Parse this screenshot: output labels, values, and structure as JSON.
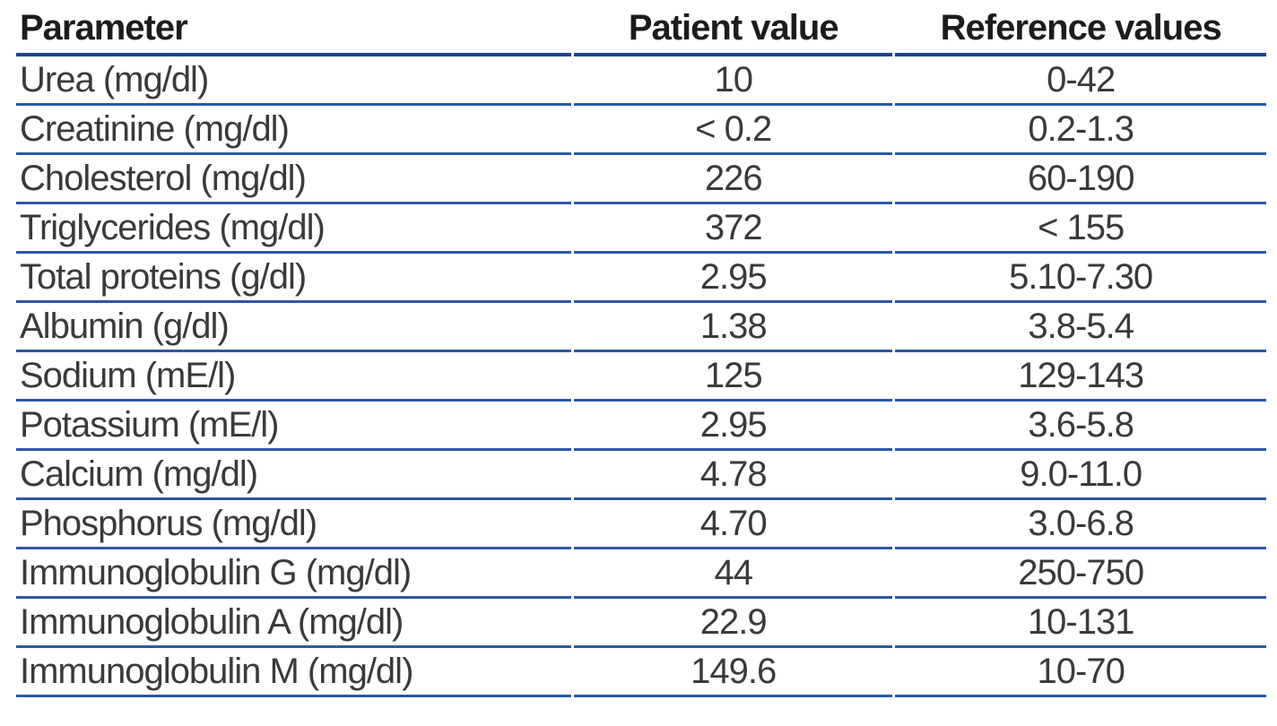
{
  "chart_data": {
    "type": "table",
    "columns": [
      "Parameter",
      "Patient value",
      "Reference values"
    ],
    "rows": [
      [
        "Urea (mg/dl)",
        "10",
        "0-42"
      ],
      [
        "Creatinine (mg/dl)",
        "< 0.2",
        "0.2-1.3"
      ],
      [
        "Cholesterol (mg/dl)",
        "226",
        "60-190"
      ],
      [
        "Triglycerides (mg/dl)",
        "372",
        "< 155"
      ],
      [
        "Total proteins (g/dl)",
        "2.95",
        "5.10-7.30"
      ],
      [
        "Albumin (g/dl)",
        "1.38",
        "3.8-5.4"
      ],
      [
        "Sodium (mE/l)",
        "125",
        "129-143"
      ],
      [
        "Potassium (mE/l)",
        "2.95",
        "3.6-5.8"
      ],
      [
        "Calcium (mg/dl)",
        "4.78",
        "9.0-11.0"
      ],
      [
        "Phosphorus (mg/dl)",
        "4.70",
        "3.0-6.8"
      ],
      [
        "Immunoglobulin G (mg/dl)",
        "44",
        "250-750"
      ],
      [
        "Immunoglobulin A (mg/dl)",
        "22.9",
        "10-131"
      ],
      [
        "Immunoglobulin M (mg/dl)",
        "149.6",
        "10-70"
      ]
    ],
    "layout_hints": {
      "first_column_align": "left",
      "value_columns_align": "center",
      "header_rule_color": "#1b4390",
      "row_rule_color": "#2b58a5",
      "grid": "horizontal-rules-only"
    }
  }
}
